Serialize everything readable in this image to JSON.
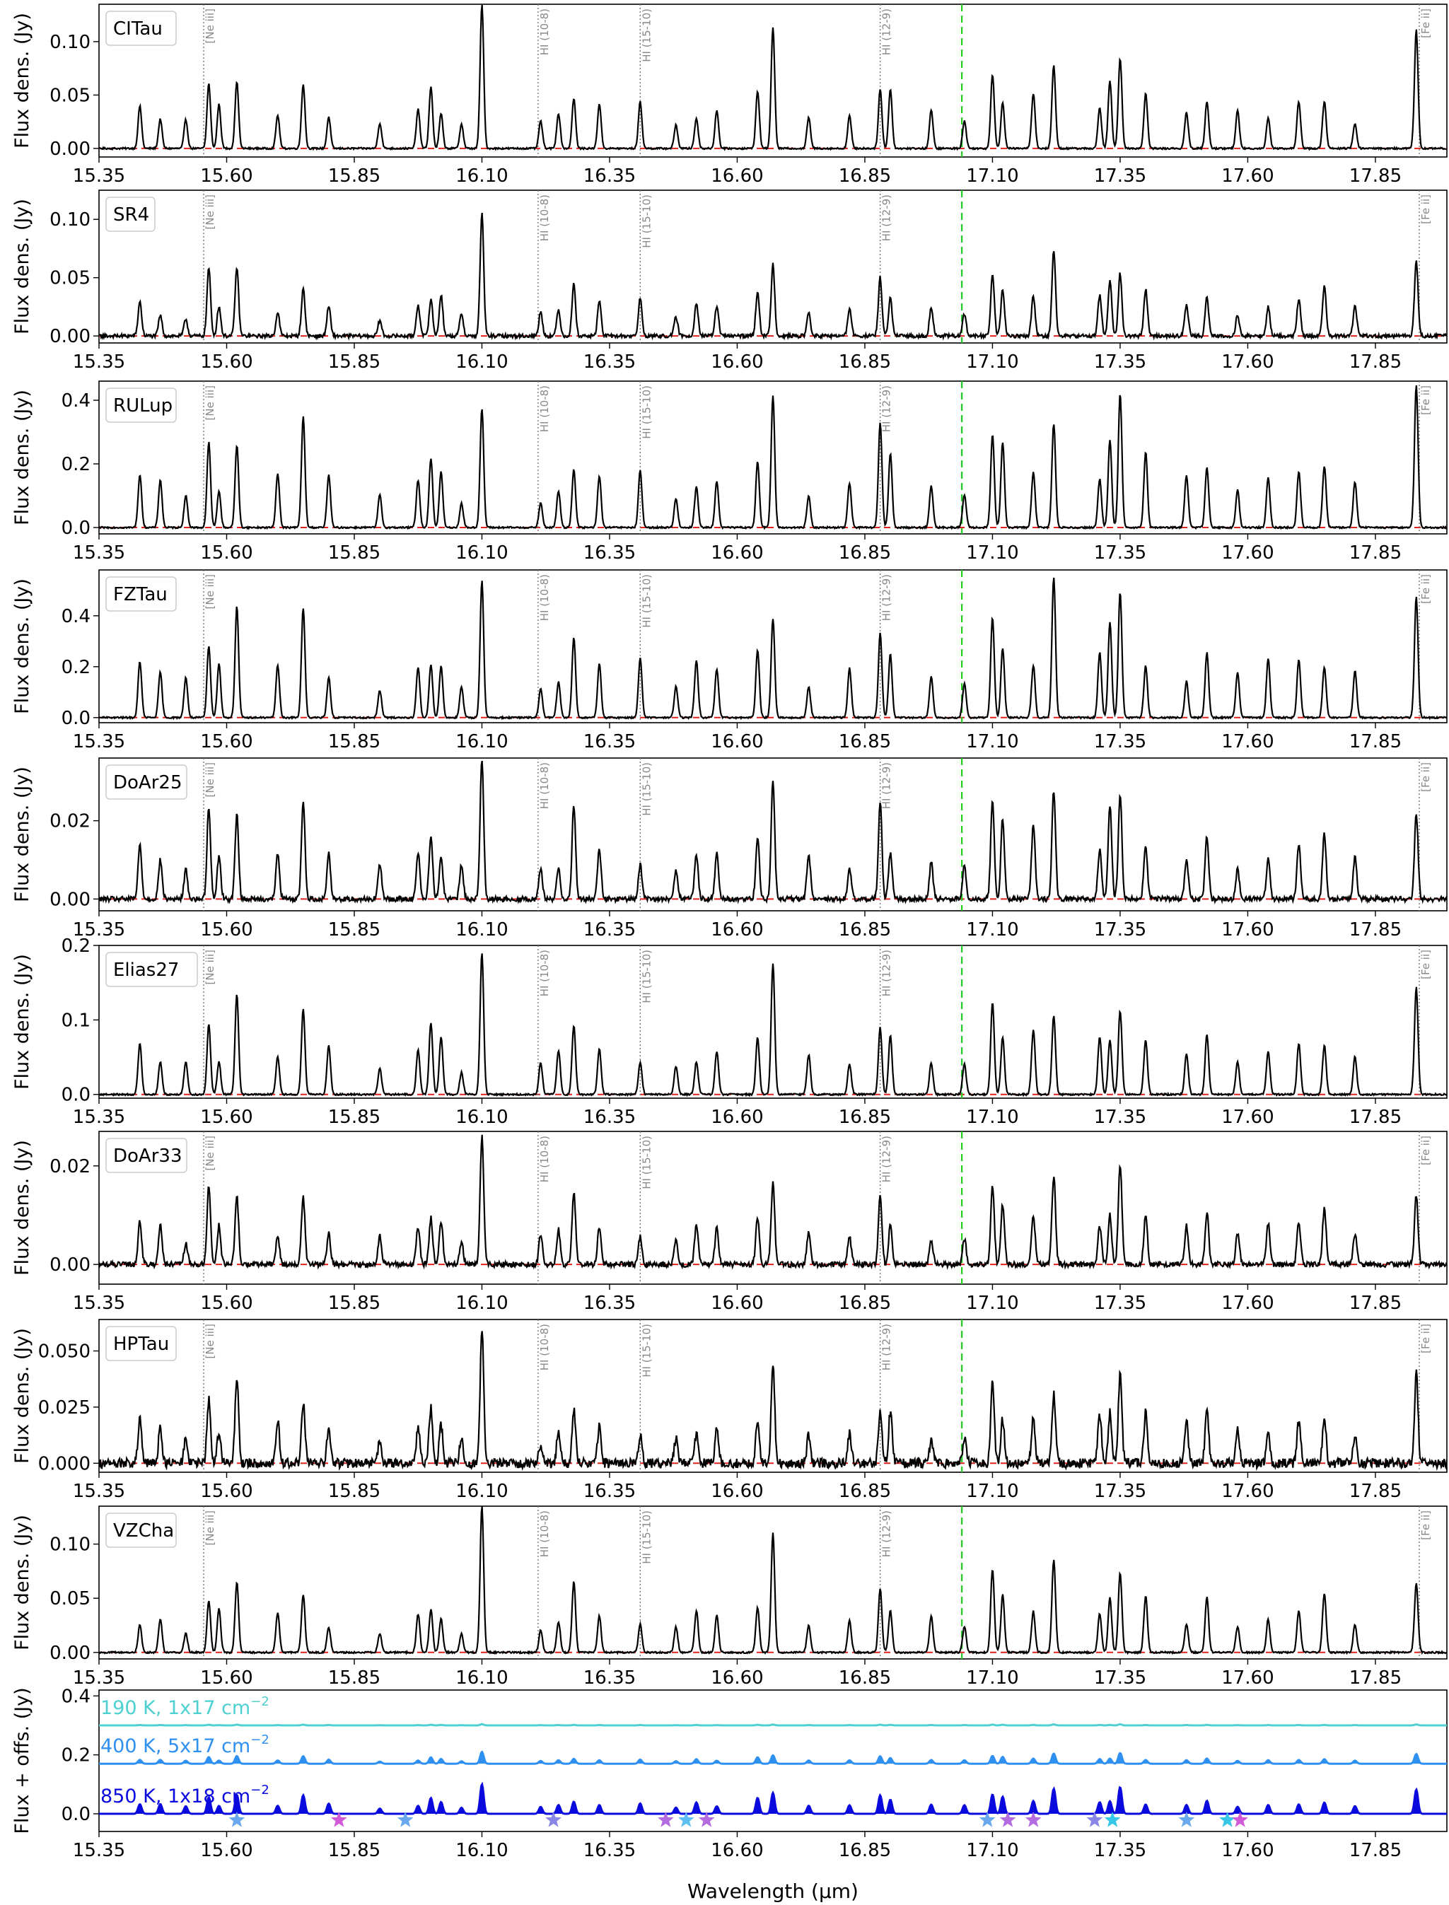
{
  "chart_data": {
    "type": "line",
    "xlabel": "Wavelength (μm)",
    "xlim": [
      15.35,
      17.99
    ],
    "xticks": [
      "15.35",
      "15.60",
      "15.85",
      "16.10",
      "16.35",
      "16.60",
      "16.85",
      "17.10",
      "17.35",
      "17.60",
      "17.85"
    ],
    "xtick_values": [
      15.35,
      15.6,
      15.85,
      16.1,
      16.35,
      16.6,
      16.85,
      17.1,
      17.35,
      17.6,
      17.85
    ],
    "ylabel": "Flux dens. (Jy)",
    "green_marker_x": 17.04,
    "line_markers": [
      {
        "label": "[Ne iii]",
        "x": 15.555
      },
      {
        "label": "HI (10-8)",
        "x": 16.21
      },
      {
        "label": "HI (15-10)",
        "x": 16.41
      },
      {
        "label": "HI (12-9)",
        "x": 16.88
      },
      {
        "label": "[Fe ii]",
        "x": 17.936
      }
    ],
    "peaks": [
      [
        15.43,
        0.3
      ],
      [
        15.47,
        0.27
      ],
      [
        15.52,
        0.2
      ],
      [
        15.565,
        0.55
      ],
      [
        15.585,
        0.3
      ],
      [
        15.62,
        0.58
      ],
      [
        15.7,
        0.3
      ],
      [
        15.75,
        0.6
      ],
      [
        15.8,
        0.28
      ],
      [
        15.9,
        0.2
      ],
      [
        15.975,
        0.28
      ],
      [
        16.0,
        0.42
      ],
      [
        16.02,
        0.35
      ],
      [
        16.06,
        0.2
      ],
      [
        16.1,
        1.0
      ],
      [
        16.215,
        0.2
      ],
      [
        16.25,
        0.25
      ],
      [
        16.28,
        0.5
      ],
      [
        16.33,
        0.3
      ],
      [
        16.41,
        0.3
      ],
      [
        16.48,
        0.2
      ],
      [
        16.52,
        0.3
      ],
      [
        16.56,
        0.3
      ],
      [
        16.64,
        0.4
      ],
      [
        16.67,
        0.8
      ],
      [
        16.74,
        0.25
      ],
      [
        16.82,
        0.25
      ],
      [
        16.88,
        0.55
      ],
      [
        16.9,
        0.4
      ],
      [
        16.98,
        0.25
      ],
      [
        17.045,
        0.22
      ],
      [
        17.1,
        0.6
      ],
      [
        17.12,
        0.45
      ],
      [
        17.18,
        0.4
      ],
      [
        17.22,
        0.7
      ],
      [
        17.31,
        0.35
      ],
      [
        17.33,
        0.5
      ],
      [
        17.35,
        0.7
      ],
      [
        17.4,
        0.4
      ],
      [
        17.48,
        0.3
      ],
      [
        17.52,
        0.45
      ],
      [
        17.58,
        0.25
      ],
      [
        17.64,
        0.3
      ],
      [
        17.7,
        0.35
      ],
      [
        17.75,
        0.4
      ],
      [
        17.81,
        0.25
      ],
      [
        17.93,
        0.75
      ]
    ],
    "panels": [
      {
        "name": "CITau",
        "ylim": [
          -0.008,
          0.135
        ],
        "yticks": [
          "0.00",
          "0.05",
          "0.10"
        ],
        "ytick_values": [
          0,
          0.05,
          0.1
        ],
        "peak_flux": 0.135,
        "noise": 0.02
      },
      {
        "name": "SR4",
        "ylim": [
          -0.006,
          0.125
        ],
        "yticks": [
          "0.00",
          "0.05",
          "0.10"
        ],
        "ytick_values": [
          0,
          0.05,
          0.1
        ],
        "peak_flux": 0.105,
        "noise": 0.05
      },
      {
        "name": "RULup",
        "ylim": [
          -0.02,
          0.46
        ],
        "yticks": [
          "0.0",
          "0.2",
          "0.4"
        ],
        "ytick_values": [
          0,
          0.2,
          0.4
        ],
        "peak_flux": 0.45,
        "noise": 0.02
      },
      {
        "name": "FZTau",
        "ylim": [
          -0.02,
          0.58
        ],
        "yticks": [
          "0.0",
          "0.2",
          "0.4"
        ],
        "ytick_values": [
          0,
          0.2,
          0.4
        ],
        "peak_flux": 0.55,
        "noise": 0.02
      },
      {
        "name": "DoAr25",
        "ylim": [
          -0.003,
          0.036
        ],
        "yticks": [
          "0.00",
          "0.02"
        ],
        "ytick_values": [
          0,
          0.02
        ],
        "peak_flux": 0.036,
        "noise": 0.06
      },
      {
        "name": "Elias27",
        "ylim": [
          -0.005,
          0.2
        ],
        "yticks": [
          "0.0",
          "0.1",
          "0.2"
        ],
        "ytick_values": [
          0,
          0.1,
          0.2
        ],
        "peak_flux": 0.19,
        "noise": 0.02
      },
      {
        "name": "DoAr33",
        "ylim": [
          -0.004,
          0.027
        ],
        "yticks": [
          "0.00",
          "0.02"
        ],
        "ytick_values": [
          0,
          0.02
        ],
        "peak_flux": 0.026,
        "noise": 0.07
      },
      {
        "name": "HPTau",
        "ylim": [
          -0.004,
          0.064
        ],
        "yticks": [
          "0.000",
          "0.025",
          "0.050"
        ],
        "ytick_values": [
          0,
          0.025,
          0.05
        ],
        "peak_flux": 0.06,
        "noise": 0.12
      },
      {
        "name": "VZCha",
        "ylim": [
          -0.006,
          0.135
        ],
        "yticks": [
          "0.00",
          "0.05",
          "0.10"
        ],
        "ytick_values": [
          0,
          0.05,
          0.1
        ],
        "peak_flux": 0.135,
        "noise": 0.02
      }
    ],
    "model_panel": {
      "ylabel": "Flux + offs. (Jy)",
      "ylim": [
        -0.06,
        0.42
      ],
      "yticks": [
        "0.0",
        "0.2",
        "0.4"
      ],
      "ytick_values": [
        0,
        0.2,
        0.4
      ],
      "models": [
        {
          "label": "190 K, 1x17 cm",
          "sup": "−2",
          "offset": 0.3,
          "scale": 0.004,
          "color": "#4fd0d0"
        },
        {
          "label": "400 K, 5x17 cm",
          "sup": "−2",
          "offset": 0.17,
          "scale": 0.04,
          "color": "#2f90f0"
        },
        {
          "label": "850 K, 1x18 cm",
          "sup": "−2",
          "offset": 0.0,
          "scale": 0.1,
          "color": "#0a0adf"
        }
      ],
      "stars": [
        {
          "x": 15.62,
          "color": "#6aa8ee"
        },
        {
          "x": 15.82,
          "color": "#d25ad6"
        },
        {
          "x": 15.95,
          "color": "#6aa8ee"
        },
        {
          "x": 16.24,
          "color": "#8a86e6"
        },
        {
          "x": 16.46,
          "color": "#b46be0"
        },
        {
          "x": 16.5,
          "color": "#5ec0f0"
        },
        {
          "x": 16.54,
          "color": "#b46be0"
        },
        {
          "x": 17.09,
          "color": "#6aa8ee"
        },
        {
          "x": 17.13,
          "color": "#b46be0"
        },
        {
          "x": 17.18,
          "color": "#b46be0"
        },
        {
          "x": 17.3,
          "color": "#8a86e6"
        },
        {
          "x": 17.335,
          "color": "#36c8e6"
        },
        {
          "x": 17.48,
          "color": "#6aa8ee"
        },
        {
          "x": 17.56,
          "color": "#36c8e6"
        },
        {
          "x": 17.585,
          "color": "#d25ad6"
        }
      ]
    }
  }
}
